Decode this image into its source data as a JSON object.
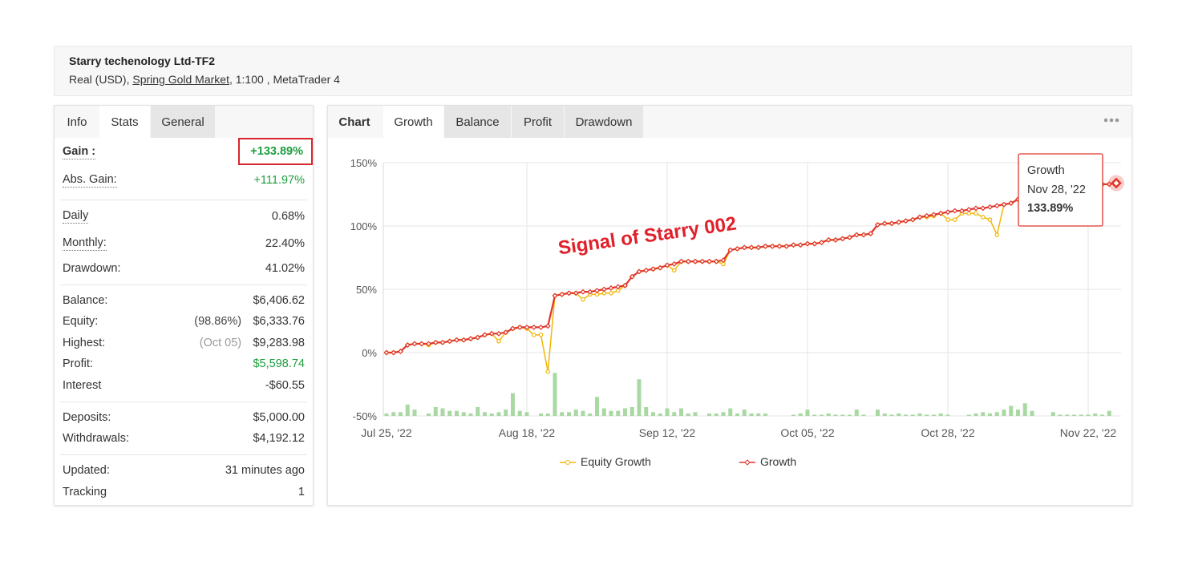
{
  "header": {
    "title": "Starry techenology Ltd-TF2",
    "account": "Real (USD), ",
    "broker": "Spring Gold Market",
    "details": ", 1:100 , MetaTrader 4"
  },
  "stats_tabs": [
    "Info",
    "Stats",
    "General"
  ],
  "stats": {
    "groups": [
      [
        {
          "label": "Gain :",
          "value": "+133.89%",
          "color": "#1e9e3e"
        },
        {
          "label": "Abs. Gain:",
          "value": "+111.97%",
          "color": "#1e9e3e"
        }
      ],
      [
        {
          "label": "Daily",
          "value": "0.68%"
        },
        {
          "label": "Monthly:",
          "value": "22.40%"
        },
        {
          "label": "Drawdown:",
          "value": "41.02%"
        }
      ],
      [
        {
          "label": "Balance:",
          "value": "$6,406.62"
        },
        {
          "label": "Equity:",
          "note": "(98.86%)",
          "note_color": "#444444",
          "value": "$6,333.76"
        },
        {
          "label": "Highest:",
          "note": "(Oct 05)",
          "note_color": "#9a9a9a",
          "value": "$9,283.98"
        },
        {
          "label": "Profit:",
          "value": "$5,598.74",
          "color": "#1e9e3e"
        },
        {
          "label": "Interest",
          "value": "-$60.55"
        }
      ],
      [
        {
          "label": "Deposits:",
          "value": "$5,000.00"
        },
        {
          "label": "Withdrawals:",
          "value": "$4,192.12"
        }
      ],
      [
        {
          "label": "Updated:",
          "value": "31 minutes ago"
        },
        {
          "label": "Tracking",
          "value": "1"
        }
      ]
    ]
  },
  "chart_tabs": {
    "label": "Chart",
    "tabs": [
      "Growth",
      "Balance",
      "Profit",
      "Drawdown"
    ]
  },
  "chart_data": {
    "type": "line",
    "annotation": "Signal of Starry 002",
    "categories": [
      "Jul 25, '22",
      null,
      null,
      null,
      null,
      null,
      null,
      null,
      null,
      null,
      null,
      null,
      null,
      null,
      null,
      null,
      null,
      null,
      null,
      null,
      "Aug 18, '22",
      null,
      null,
      null,
      null,
      null,
      null,
      null,
      null,
      null,
      null,
      null,
      null,
      null,
      null,
      null,
      null,
      null,
      null,
      null,
      "Sep 12, '22",
      null,
      null,
      null,
      null,
      null,
      null,
      null,
      null,
      null,
      null,
      null,
      null,
      null,
      null,
      null,
      null,
      null,
      null,
      null,
      "Oct 05, '22",
      null,
      null,
      null,
      null,
      null,
      null,
      null,
      null,
      null,
      null,
      null,
      null,
      null,
      null,
      null,
      null,
      null,
      null,
      null,
      "Oct 28, '22",
      null,
      null,
      null,
      null,
      null,
      null,
      null,
      null,
      null,
      null,
      null,
      null,
      null,
      null,
      null,
      null,
      null,
      null,
      null,
      "Nov 22, '22",
      null,
      null,
      null,
      null
    ],
    "series": [
      {
        "name": "Equity Growth",
        "color": "#f2b705",
        "values": [
          0,
          0,
          1,
          6,
          7,
          7,
          6,
          8,
          8,
          9,
          10,
          10,
          11,
          12,
          14,
          15,
          9,
          16,
          19,
          20,
          19,
          14,
          14,
          -15,
          45,
          46,
          47,
          47,
          42,
          46,
          46,
          47,
          47,
          49,
          53,
          60,
          64,
          65,
          66,
          67,
          69,
          65,
          72,
          72,
          72,
          72,
          72,
          72,
          70,
          81,
          82,
          83,
          83,
          83,
          84,
          84,
          84,
          84,
          85,
          85,
          86,
          86,
          87,
          89,
          89,
          90,
          91,
          93,
          93,
          94,
          101,
          102,
          102,
          103,
          104,
          105,
          107,
          107,
          108,
          110,
          105,
          105,
          110,
          110,
          110,
          107,
          105,
          93,
          117,
          118,
          121,
          122,
          123,
          124,
          125,
          126,
          127,
          128,
          129,
          130,
          131,
          132,
          133,
          133,
          133.89
        ]
      },
      {
        "name": "Growth",
        "color": "#e0352b",
        "values": [
          0,
          0,
          1,
          6,
          7,
          7,
          7,
          8,
          8,
          9,
          10,
          10,
          11,
          12,
          14,
          15,
          15,
          16,
          19,
          20,
          20,
          20,
          20,
          21,
          45,
          46,
          47,
          47,
          48,
          48,
          49,
          50,
          51,
          52,
          53,
          60,
          64,
          65,
          66,
          67,
          69,
          70,
          72,
          72,
          72,
          72,
          72,
          72,
          73,
          81,
          82,
          83,
          83,
          83,
          84,
          84,
          84,
          84,
          85,
          85,
          86,
          86,
          87,
          89,
          89,
          90,
          91,
          93,
          93,
          94,
          101,
          102,
          102,
          103,
          104,
          105,
          107,
          108,
          109,
          110,
          111,
          112,
          112,
          113,
          114,
          114,
          115,
          116,
          117,
          118,
          121,
          122,
          123,
          124,
          125,
          126,
          127,
          128,
          129,
          130,
          131,
          132,
          133,
          133,
          133.89
        ]
      },
      {
        "type": "bar",
        "color": "#a9d8a3",
        "values": [
          -48,
          -47,
          -47,
          -41,
          -45,
          null,
          -48,
          -43,
          -44,
          -46,
          -46,
          -47,
          -48,
          -43,
          -47,
          -48,
          -47,
          -45,
          -32,
          -46,
          -47,
          null,
          -48,
          -48,
          -16,
          -47,
          -47,
          -45,
          -46,
          -48,
          -35,
          -44,
          -46,
          -46,
          -44,
          -43,
          -21,
          -43,
          -47,
          -48,
          -44,
          -47,
          -44,
          -48,
          -47,
          null,
          -48,
          -48,
          -47,
          -44,
          -48,
          -45,
          -48,
          -48,
          -48,
          null,
          null,
          null,
          -49,
          -48,
          -45,
          -49,
          -49,
          -48,
          -49,
          -49,
          -49,
          -45,
          -49,
          null,
          -45,
          -48,
          -49,
          -48,
          -49,
          -49,
          -48,
          -49,
          -49,
          -48,
          -49,
          null,
          null,
          -49,
          -48,
          -47,
          -48,
          -47,
          -45,
          -42,
          -45,
          -40,
          -46,
          null,
          null,
          -47,
          -49,
          -49,
          -49,
          -49,
          -49,
          -48,
          -49,
          -46,
          null
        ]
      }
    ],
    "ylim": [
      -50,
      150
    ],
    "yticks": [
      {
        "value": -50,
        "label": "-50%"
      },
      {
        "value": 0,
        "label": "0%"
      },
      {
        "value": 50,
        "label": "50%"
      },
      {
        "value": 100,
        "label": "100%"
      },
      {
        "value": 150,
        "label": "150%"
      }
    ],
    "grid": true,
    "tooltip": {
      "date": "Nov 28, '22",
      "label": "133.89%"
    }
  }
}
